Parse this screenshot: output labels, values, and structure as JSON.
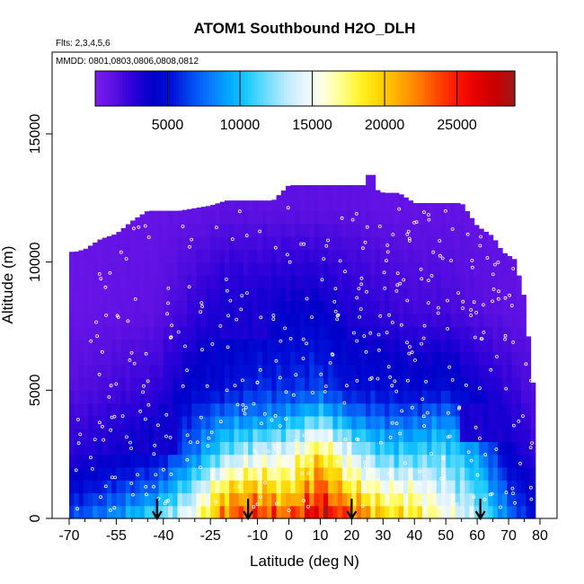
{
  "chart_data": {
    "type": "heatmap",
    "title": "ATOM1 Southbound H2O_DLH",
    "subtitle_flights": "Flts: 2,3,4,5,6",
    "subtitle_dates": "MMDD: 0801,0803,0806,0808,0812",
    "xlabel": "Latitude (deg N)",
    "ylabel": "Altitude (m)",
    "xlim": [
      -70,
      80
    ],
    "ylim": [
      0,
      17500
    ],
    "x_ticks": [
      -70,
      -55,
      -40,
      -25,
      -10,
      0,
      10,
      20,
      30,
      40,
      50,
      60,
      70,
      80
    ],
    "x_tick_labels": [
      "-70",
      "-55",
      "-40",
      "-25",
      "-10",
      "0",
      "10",
      "20",
      "30",
      "40",
      "50",
      "60",
      "70",
      "80"
    ],
    "x_minor_ticks": [
      -65,
      -60,
      -50,
      -45,
      -35,
      -30,
      -20,
      -15,
      -5,
      5,
      15,
      25,
      35,
      45,
      55,
      65,
      75
    ],
    "y_ticks": [
      0,
      5000,
      10000,
      15000
    ],
    "y_tick_labels": [
      "0",
      "5000",
      "10000",
      "15000"
    ],
    "colorbar": {
      "min": 0,
      "max": 29000,
      "ticks": [
        5000,
        10000,
        15000,
        20000,
        25000
      ],
      "tick_labels": [
        "5000",
        "10000",
        "15000",
        "20000",
        "25000"
      ],
      "colors": [
        "#7d1cf0",
        "#5a10e0",
        "#2b00d8",
        "#0000c8",
        "#0010d8",
        "#0048f0",
        "#0a78ff",
        "#00a8ff",
        "#1ecbff",
        "#70dcff",
        "#bde9ff",
        "#e9f6ff",
        "#ffffe0",
        "#ffff80",
        "#fff020",
        "#ffd000",
        "#ffa800",
        "#ff7a00",
        "#ff4400",
        "#ff1400",
        "#e60000",
        "#c80000",
        "#9e1a1a"
      ]
    },
    "profile_markers_lat": [
      -42,
      -13,
      20,
      61
    ],
    "column_top_altitude": [
      [
        -70,
        10400
      ],
      [
        -68,
        10400
      ],
      [
        -65,
        10500
      ],
      [
        -60,
        10900
      ],
      [
        -55,
        11100
      ],
      [
        -50,
        11600
      ],
      [
        -45,
        12000
      ],
      [
        -35,
        12000
      ],
      [
        -25,
        12200
      ],
      [
        -20,
        12400
      ],
      [
        -5,
        12400
      ],
      [
        0,
        13000
      ],
      [
        10,
        13000
      ],
      [
        20,
        13000
      ],
      [
        25,
        13000
      ],
      [
        30,
        12700
      ],
      [
        35,
        12700
      ],
      [
        40,
        12300
      ],
      [
        55,
        12300
      ],
      [
        60,
        11400
      ],
      [
        65,
        11000
      ],
      [
        68,
        10400
      ],
      [
        72,
        10100
      ],
      [
        75,
        8600
      ],
      [
        78,
        5000
      ]
    ],
    "top_spike": {
      "lat_from": 24,
      "lat_to": 27,
      "alt_top": 13400
    },
    "moisture_field": [
      {
        "lat": -68,
        "profile": [
          [
            0,
            7000
          ],
          [
            1000,
            5000
          ],
          [
            2500,
            2800
          ],
          [
            5000,
            1500
          ],
          [
            8000,
            800
          ],
          [
            12000,
            800
          ]
        ]
      },
      {
        "lat": -55,
        "profile": [
          [
            0,
            9000
          ],
          [
            1000,
            6500
          ],
          [
            2500,
            3500
          ],
          [
            5000,
            2000
          ],
          [
            8000,
            1000
          ],
          [
            12000,
            900
          ]
        ]
      },
      {
        "lat": -42,
        "profile": [
          [
            0,
            12000
          ],
          [
            1000,
            8000
          ],
          [
            2500,
            4500
          ],
          [
            5000,
            2500
          ],
          [
            8000,
            1200
          ],
          [
            12000,
            900
          ]
        ]
      },
      {
        "lat": -30,
        "profile": [
          [
            0,
            16000
          ],
          [
            1000,
            13000
          ],
          [
            2500,
            8000
          ],
          [
            5000,
            4500
          ],
          [
            8000,
            2500
          ],
          [
            12000,
            1000
          ]
        ]
      },
      {
        "lat": -20,
        "profile": [
          [
            0,
            23000
          ],
          [
            1000,
            20000
          ],
          [
            2500,
            12000
          ],
          [
            4000,
            8000
          ],
          [
            5000,
            5000
          ],
          [
            8000,
            3500
          ],
          [
            12000,
            1200
          ]
        ]
      },
      {
        "lat": -10,
        "profile": [
          [
            0,
            25000
          ],
          [
            1000,
            21000
          ],
          [
            2500,
            14000
          ],
          [
            4000,
            8000
          ],
          [
            5000,
            6000
          ],
          [
            8000,
            3500
          ],
          [
            12000,
            1200
          ]
        ]
      },
      {
        "lat": 0,
        "profile": [
          [
            0,
            24000
          ],
          [
            1000,
            19000
          ],
          [
            2500,
            15000
          ],
          [
            4000,
            9000
          ],
          [
            5000,
            6000
          ],
          [
            8000,
            4000
          ],
          [
            12000,
            1200
          ]
        ]
      },
      {
        "lat": 10,
        "profile": [
          [
            0,
            28000
          ],
          [
            1000,
            24000
          ],
          [
            2500,
            19000
          ],
          [
            4000,
            11000
          ],
          [
            5000,
            6500
          ],
          [
            8000,
            4000
          ],
          [
            12000,
            1200
          ]
        ]
      },
      {
        "lat": 20,
        "profile": [
          [
            0,
            24000
          ],
          [
            1000,
            19000
          ],
          [
            2500,
            14000
          ],
          [
            4000,
            8000
          ],
          [
            5000,
            5000
          ],
          [
            8000,
            3000
          ],
          [
            12000,
            1200
          ]
        ]
      },
      {
        "lat": 30,
        "profile": [
          [
            0,
            20000
          ],
          [
            1000,
            16500
          ],
          [
            2500,
            11000
          ],
          [
            4000,
            7000
          ],
          [
            5000,
            5000
          ],
          [
            8000,
            2500
          ],
          [
            12000,
            1000
          ]
        ]
      },
      {
        "lat": 40,
        "profile": [
          [
            0,
            19000
          ],
          [
            1000,
            16000
          ],
          [
            2500,
            11000
          ],
          [
            4000,
            7000
          ],
          [
            5000,
            4500
          ],
          [
            8000,
            2000
          ],
          [
            12000,
            1000
          ]
        ]
      },
      {
        "lat": 50,
        "profile": [
          [
            0,
            16000
          ],
          [
            1000,
            14000
          ],
          [
            2500,
            11500
          ],
          [
            4000,
            8000
          ],
          [
            5000,
            5000
          ],
          [
            8000,
            2000
          ],
          [
            12000,
            1000
          ]
        ]
      },
      {
        "lat": 60,
        "profile": [
          [
            0,
            13000
          ],
          [
            1000,
            11500
          ],
          [
            2500,
            9000
          ],
          [
            4000,
            5000
          ],
          [
            5000,
            3500
          ],
          [
            8000,
            1500
          ],
          [
            12000,
            900
          ]
        ]
      },
      {
        "lat": 70,
        "profile": [
          [
            0,
            8000
          ],
          [
            1000,
            6500
          ],
          [
            2500,
            4000
          ],
          [
            5000,
            2500
          ],
          [
            8000,
            1200
          ],
          [
            12000,
            900
          ]
        ]
      },
      {
        "lat": 78,
        "profile": [
          [
            0,
            5000
          ],
          [
            1000,
            4000
          ],
          [
            2500,
            2500
          ],
          [
            5000,
            1500
          ],
          [
            8000,
            1000
          ],
          [
            12000,
            900
          ]
        ]
      }
    ],
    "dry_layers": [
      {
        "lat_from": -60,
        "lat_to": -35,
        "alt_from": 2500,
        "alt_to": 4500,
        "value": 3500
      },
      {
        "lat_from": -25,
        "lat_to": -5,
        "alt_from": 7000,
        "alt_to": 9000,
        "value": 3200
      },
      {
        "lat_from": 20,
        "lat_to": 40,
        "alt_from": 7500,
        "alt_to": 9500,
        "value": 3000
      },
      {
        "lat_from": 55,
        "lat_to": 72,
        "alt_from": 3000,
        "alt_to": 4500,
        "value": 3200
      }
    ]
  }
}
